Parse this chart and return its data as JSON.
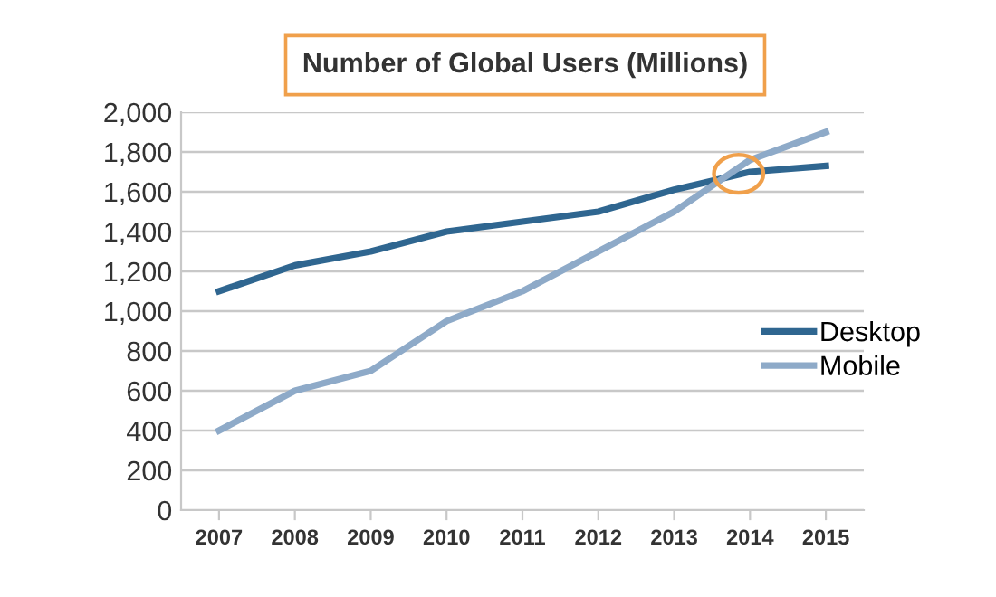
{
  "chart_data": {
    "type": "line",
    "title": "Number of Global Users (Millions)",
    "categories": [
      "2007",
      "2008",
      "2009",
      "2010",
      "2011",
      "2012",
      "2013",
      "2014",
      "2015"
    ],
    "series": [
      {
        "name": "Desktop",
        "color": "#2f6690",
        "values": [
          1100,
          1230,
          1300,
          1400,
          1450,
          1500,
          1610,
          1700,
          1730
        ]
      },
      {
        "name": "Mobile",
        "color": "#8eaac8",
        "values": [
          400,
          600,
          700,
          950,
          1100,
          1300,
          1500,
          1760,
          1900
        ]
      }
    ],
    "ylim": [
      0,
      2000
    ],
    "yticks": [
      {
        "value": 0,
        "label": "0"
      },
      {
        "value": 200,
        "label": "200"
      },
      {
        "value": 400,
        "label": "400"
      },
      {
        "value": 600,
        "label": "600"
      },
      {
        "value": 800,
        "label": "800"
      },
      {
        "value": 1000,
        "label": "1,000"
      },
      {
        "value": 1200,
        "label": "1,200"
      },
      {
        "value": 1400,
        "label": "1,400"
      },
      {
        "value": 1600,
        "label": "1,600"
      },
      {
        "value": 1800,
        "label": "1,800"
      },
      {
        "value": 2000,
        "label": "2,000"
      }
    ],
    "grid": "y",
    "legend": "right",
    "marker": "none",
    "line_style": "solid"
  }
}
